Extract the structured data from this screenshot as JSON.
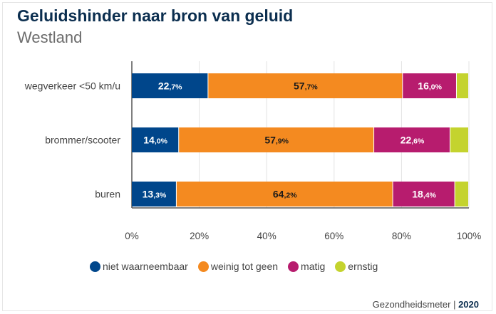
{
  "header": {
    "title": "Geluidshinder naar bron van geluid",
    "subtitle": "Westland"
  },
  "chart_data": {
    "type": "bar",
    "orientation": "horizontal",
    "stacked": true,
    "title": "Geluidshinder naar bron van geluid",
    "subtitle": "Westland",
    "categories": [
      "wegverkeer <50 km/u",
      "brommer/scooter",
      "buren"
    ],
    "series": [
      {
        "name": "niet waarneembaar",
        "color": "#00468b",
        "values": [
          22.7,
          14.0,
          13.3
        ],
        "labels": [
          "22,7%",
          "14,0%",
          "13,3%"
        ],
        "label_color": "#ffffff"
      },
      {
        "name": "weinig tot geen",
        "color": "#f48a20",
        "values": [
          57.7,
          57.9,
          64.2
        ],
        "labels": [
          "57,7%",
          "57,9%",
          "64,2%"
        ],
        "label_color": "#1a1a1a"
      },
      {
        "name": "matig",
        "color": "#b71c6e",
        "values": [
          16.0,
          22.6,
          18.4
        ],
        "labels": [
          "16,0%",
          "22,6%",
          "18,4%"
        ],
        "label_color": "#ffffff"
      },
      {
        "name": "ernstig",
        "color": "#c4d32e",
        "values": [
          3.6,
          5.5,
          4.1
        ],
        "labels": [
          "",
          "",
          ""
        ],
        "label_color": "#1a1a1a"
      }
    ],
    "xlim": [
      0,
      100
    ],
    "xticks": [
      "0%",
      "20%",
      "40%",
      "60%",
      "80%",
      "100%"
    ],
    "grid": true,
    "legend": "bottom"
  },
  "footer": {
    "source": "Gezondheidsmeter",
    "year": "2020"
  }
}
